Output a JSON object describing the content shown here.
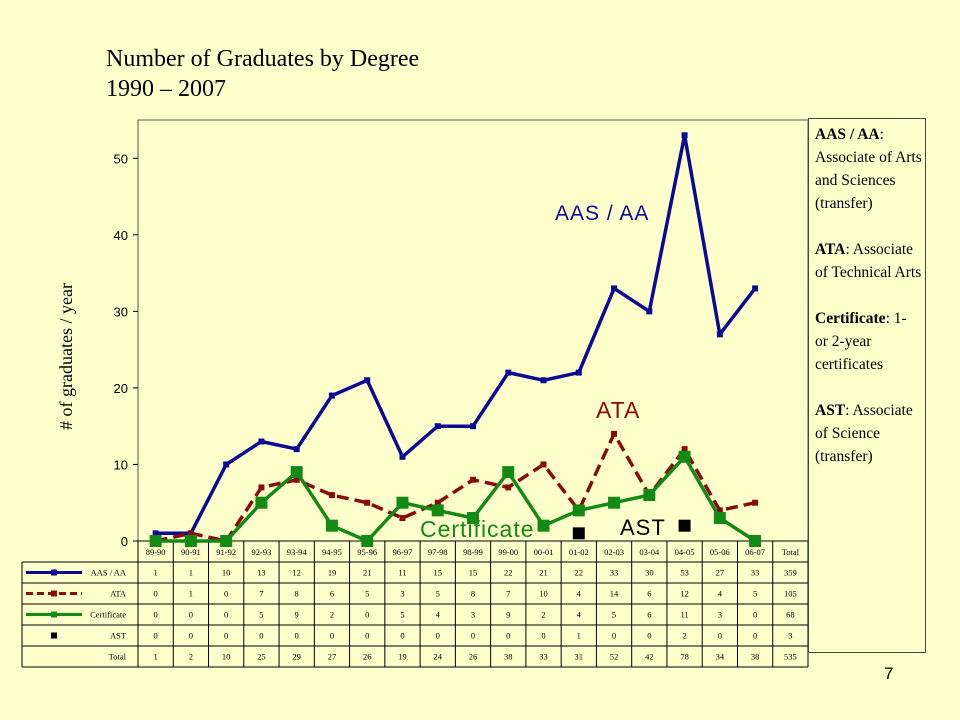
{
  "title": {
    "line1": "Number of Graduates by Degree",
    "line2": "1990 – 2007"
  },
  "page_number": "7",
  "legend_notes": [
    {
      "term": "AAS / AA",
      "desc": "Associate of Arts and Sciences (transfer)"
    },
    {
      "term": "ATA",
      "desc": "Associate of Technical Arts"
    },
    {
      "term": "Certificate",
      "desc": "1- or 2-year certificates"
    },
    {
      "term": "AST",
      "desc": "Associate of Science (transfer)"
    }
  ],
  "chart_data": {
    "type": "line",
    "ylabel": "# of graduates / year",
    "ylim": [
      0,
      55
    ],
    "yticks": [
      0,
      10,
      20,
      30,
      40,
      50
    ],
    "categories": [
      "89-90",
      "90-91",
      "91-92",
      "92-93",
      "93-94",
      "94-95",
      "95-96",
      "96-97",
      "97-98",
      "98-99",
      "99-00",
      "00-01",
      "01-02",
      "02-03",
      "03-04",
      "04-05",
      "05-06",
      "06-07"
    ],
    "total_label": "Total",
    "series": [
      {
        "name": "AAS / AA",
        "chart_label": "AAS / AA",
        "color": "#0A0A96",
        "style": "solid",
        "values": [
          1,
          1,
          10,
          13,
          12,
          19,
          21,
          11,
          15,
          15,
          22,
          21,
          22,
          33,
          30,
          53,
          27,
          33
        ],
        "total": 359
      },
      {
        "name": "ATA",
        "chart_label": "ATA",
        "color": "#8B0A0A",
        "style": "dashed",
        "values": [
          0,
          1,
          0,
          7,
          8,
          6,
          5,
          3,
          5,
          8,
          7,
          10,
          4,
          14,
          6,
          12,
          4,
          5
        ],
        "total": 105
      },
      {
        "name": "Certificate",
        "chart_label": "Certificate",
        "color": "#138A13",
        "style": "solid",
        "values": [
          0,
          0,
          0,
          5,
          9,
          2,
          0,
          5,
          4,
          3,
          9,
          2,
          4,
          5,
          6,
          11,
          3,
          0
        ],
        "total": 68
      },
      {
        "name": "AST",
        "chart_label": "AST",
        "color": "#000000",
        "style": "markers",
        "values": [
          0,
          0,
          0,
          0,
          0,
          0,
          0,
          0,
          0,
          0,
          0,
          0,
          1,
          0,
          0,
          2,
          0,
          0
        ],
        "total": 3
      }
    ],
    "total_row": {
      "name": "Total",
      "values": [
        1,
        2,
        10,
        25,
        29,
        27,
        26,
        19,
        24,
        26,
        38,
        33,
        31,
        52,
        42,
        78,
        34,
        38
      ],
      "total": 535
    }
  }
}
